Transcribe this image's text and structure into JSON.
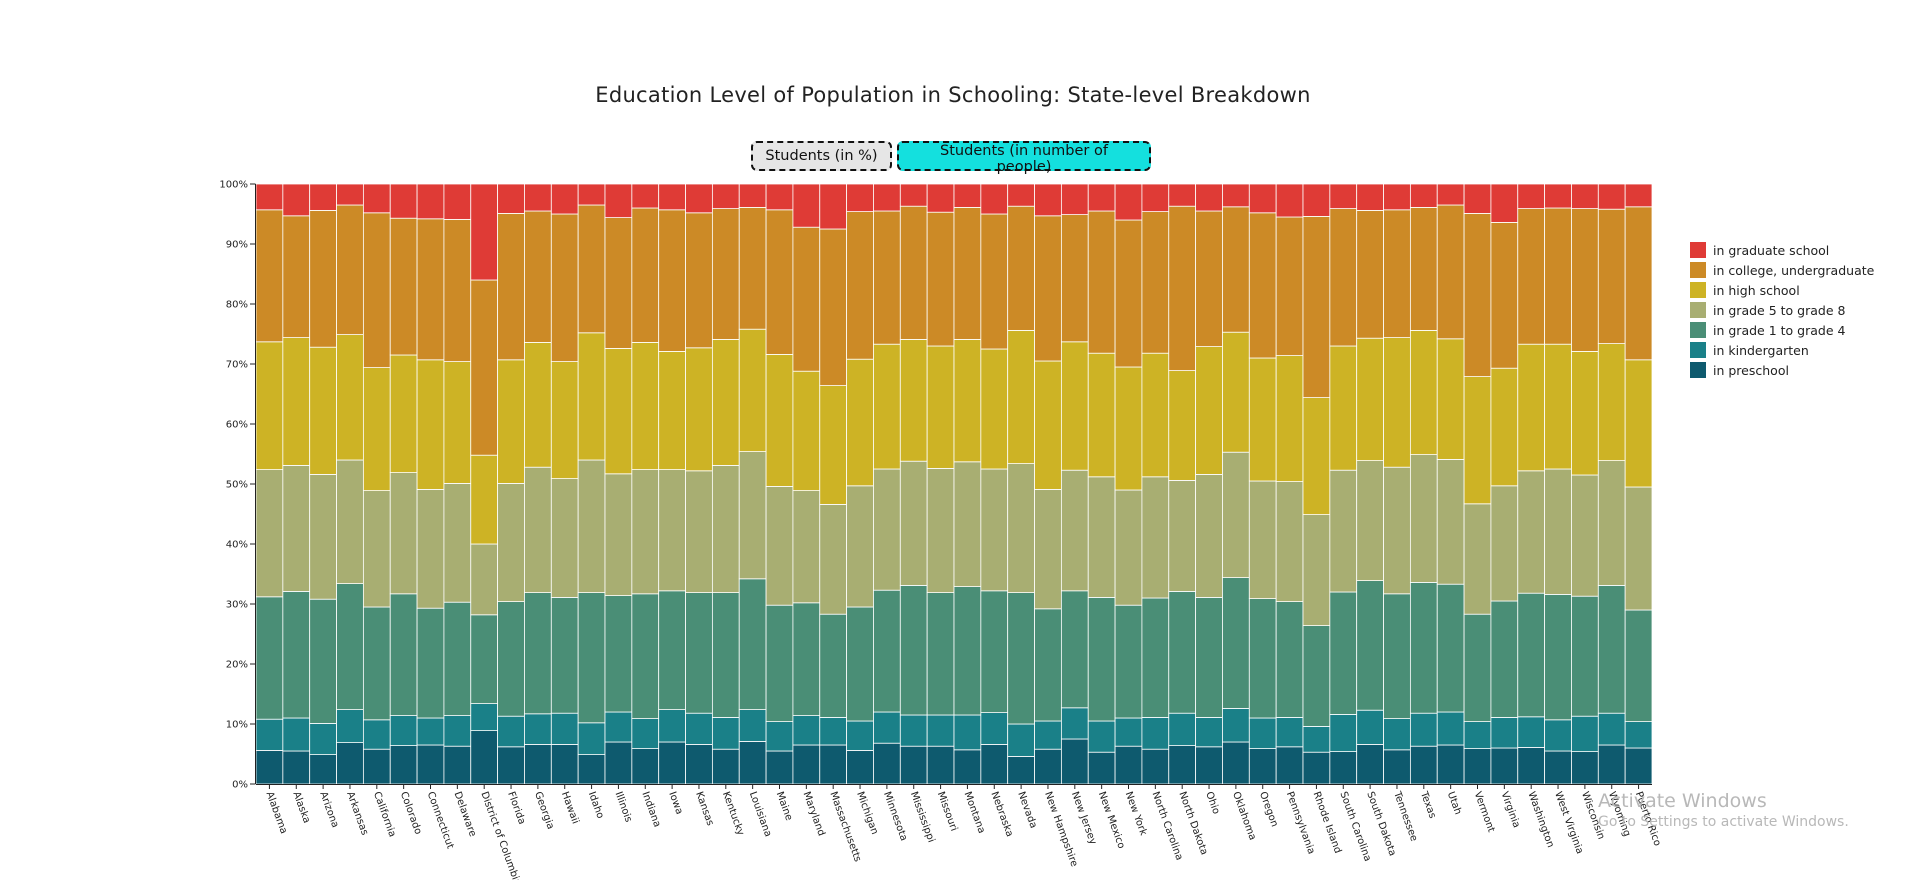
{
  "title": "Education Level of Population in Schooling: State-level Breakdown",
  "buttons": {
    "percent_label": "Students (in %)",
    "number_label": "Students (in number of people)"
  },
  "watermark": {
    "line1": "Activate Windows",
    "line2": "Go to Settings to activate Windows."
  },
  "chart_data": {
    "type": "bar",
    "stacked": true,
    "normalized_percent": true,
    "title": "Education Level of Population in Schooling: State-level Breakdown",
    "xlabel": "",
    "ylabel": "",
    "ylim": [
      0,
      100
    ],
    "y_ticks": [
      "0%",
      "10%",
      "20%",
      "30%",
      "40%",
      "50%",
      "60%",
      "70%",
      "80%",
      "90%",
      "100%"
    ],
    "legend_position": "right",
    "categories": [
      "Alabama",
      "Alaska",
      "Arizona",
      "Arkansas",
      "California",
      "Colorado",
      "Connecticut",
      "Delaware",
      "District of Columbia",
      "Florida",
      "Georgia",
      "Hawaii",
      "Idaho",
      "Illinois",
      "Indiana",
      "Iowa",
      "Kansas",
      "Kentucky",
      "Louisiana",
      "Maine",
      "Maryland",
      "Massachusetts",
      "Michigan",
      "Minnesota",
      "Mississippi",
      "Missouri",
      "Montana",
      "Nebraska",
      "Nevada",
      "New Hampshire",
      "New Jersey",
      "New Mexico",
      "New York",
      "North Carolina",
      "North Dakota",
      "Ohio",
      "Oklahoma",
      "Oregon",
      "Pennsylvania",
      "Rhode Island",
      "South Carolina",
      "South Dakota",
      "Tennessee",
      "Texas",
      "Utah",
      "Vermont",
      "Virginia",
      "Washington",
      "West Virginia",
      "Wisconsin",
      "Wyoming",
      "Puerto Rico"
    ],
    "series": [
      {
        "name": "in preschool",
        "color": "#0e5a6e",
        "values": [
          5.6,
          5.5,
          4.9,
          6.9,
          5.8,
          6.4,
          6.5,
          6.3,
          8.9,
          6.2,
          6.6,
          6.6,
          4.9,
          7.0,
          5.9,
          7.0,
          6.6,
          5.8,
          7.1,
          5.5,
          6.5,
          6.5,
          5.6,
          6.8,
          6.3,
          6.3,
          5.7,
          6.6,
          4.6,
          5.8,
          7.5,
          5.3,
          6.3,
          5.8,
          6.4,
          6.2,
          7.0,
          5.9,
          6.2,
          5.3,
          5.4,
          6.6,
          5.7,
          6.3,
          6.5,
          5.9,
          6.0,
          6.1,
          5.5,
          5.4,
          6.5,
          6.0
        ]
      },
      {
        "name": "in kindergarten",
        "color": "#1a8088",
        "values": [
          5.2,
          5.5,
          5.2,
          5.5,
          4.9,
          5.0,
          4.5,
          5.1,
          4.5,
          5.1,
          5.1,
          5.2,
          5.3,
          5.0,
          5.0,
          5.4,
          5.2,
          5.3,
          5.3,
          4.9,
          4.9,
          4.6,
          4.9,
          5.2,
          5.2,
          5.2,
          5.8,
          5.3,
          5.4,
          4.7,
          5.2,
          5.2,
          4.7,
          5.3,
          5.4,
          4.9,
          5.6,
          5.1,
          4.9,
          4.3,
          6.2,
          5.7,
          5.2,
          5.5,
          5.5,
          4.5,
          5.1,
          5.1,
          5.2,
          5.9,
          5.3,
          4.4
        ]
      },
      {
        "name": "in grade 1 to grade 4",
        "color": "#4a8e76",
        "values": [
          20.4,
          21.1,
          20.7,
          21.0,
          18.8,
          20.3,
          18.3,
          18.9,
          14.8,
          19.1,
          20.2,
          19.3,
          21.7,
          19.4,
          20.8,
          19.8,
          20.1,
          20.8,
          21.8,
          19.4,
          18.8,
          17.2,
          19.0,
          20.3,
          21.6,
          20.4,
          21.4,
          20.3,
          21.9,
          18.7,
          19.5,
          20.6,
          18.8,
          19.9,
          20.3,
          20.0,
          21.8,
          19.9,
          19.3,
          16.8,
          20.4,
          21.6,
          20.8,
          21.8,
          21.3,
          17.9,
          19.4,
          20.6,
          20.9,
          20.0,
          21.3,
          18.6
        ]
      },
      {
        "name": "in grade 5 to grade 8",
        "color": "#a8ae72",
        "values": [
          21.2,
          21.0,
          20.8,
          20.6,
          19.4,
          20.2,
          19.8,
          19.8,
          11.8,
          19.7,
          20.9,
          19.8,
          22.1,
          20.3,
          20.7,
          20.2,
          20.3,
          21.2,
          21.2,
          19.8,
          18.7,
          18.3,
          20.2,
          20.2,
          20.7,
          20.7,
          20.8,
          20.3,
          21.5,
          19.9,
          20.1,
          20.1,
          19.2,
          20.2,
          18.5,
          20.5,
          20.9,
          19.6,
          20.0,
          18.5,
          20.3,
          20.0,
          21.1,
          21.3,
          20.8,
          18.4,
          19.2,
          20.4,
          20.9,
          20.2,
          20.8,
          20.5
        ]
      },
      {
        "name": "in high school",
        "color": "#cdb325",
        "values": [
          21.3,
          21.3,
          21.2,
          20.9,
          20.5,
          19.6,
          21.6,
          20.3,
          14.8,
          20.6,
          20.8,
          19.5,
          21.2,
          20.9,
          21.2,
          19.7,
          20.5,
          21.0,
          20.4,
          22.0,
          19.9,
          19.8,
          21.1,
          20.8,
          20.3,
          20.4,
          20.4,
          20.0,
          22.2,
          21.4,
          21.4,
          20.6,
          20.5,
          20.6,
          18.3,
          21.3,
          20.0,
          20.5,
          21.0,
          19.5,
          20.7,
          20.4,
          21.6,
          20.7,
          20.1,
          21.2,
          19.6,
          21.1,
          20.8,
          20.6,
          19.5,
          21.2
        ]
      },
      {
        "name": "in college, undergraduate",
        "color": "#cc8a26",
        "values": [
          22.0,
          20.3,
          22.8,
          21.6,
          25.8,
          22.8,
          23.5,
          23.7,
          29.2,
          24.4,
          21.9,
          24.6,
          21.3,
          21.8,
          22.4,
          23.6,
          22.5,
          21.8,
          20.3,
          24.1,
          24.0,
          26.1,
          24.6,
          22.2,
          22.2,
          22.3,
          22.0,
          22.5,
          20.7,
          24.2,
          21.2,
          23.7,
          24.5,
          23.6,
          27.4,
          22.6,
          20.9,
          24.2,
          23.1,
          30.2,
          22.9,
          21.3,
          21.3,
          20.5,
          22.3,
          27.2,
          24.3,
          22.6,
          22.7,
          23.8,
          22.4,
          25.5
        ]
      },
      {
        "name": "in graduate school",
        "color": "#df3b36",
        "values": [
          4.3,
          5.3,
          4.4,
          3.5,
          4.8,
          5.7,
          5.8,
          5.9,
          16.0,
          4.9,
          4.5,
          5.0,
          3.5,
          5.6,
          4.0,
          4.3,
          4.8,
          4.1,
          3.9,
          4.3,
          7.2,
          7.5,
          4.6,
          4.5,
          3.7,
          4.7,
          3.9,
          5.0,
          3.7,
          5.3,
          5.1,
          4.5,
          6.0,
          4.6,
          3.7,
          4.5,
          3.8,
          4.8,
          5.5,
          5.4,
          4.1,
          4.4,
          4.3,
          3.9,
          3.5,
          4.9,
          6.4,
          4.1,
          4.0,
          4.1,
          4.2,
          3.8
        ]
      }
    ]
  }
}
